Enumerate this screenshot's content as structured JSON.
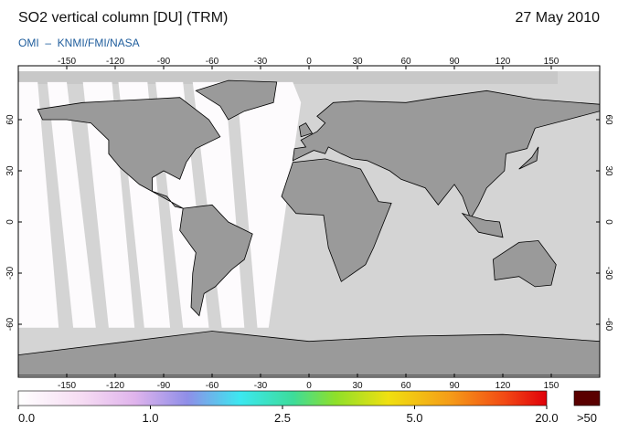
{
  "header": {
    "title": "SO2 vertical column [DU] (TRM)",
    "date": "27 May 2010",
    "source": "OMI  –  KNMI/FMI/NASA"
  },
  "map": {
    "xlim": [
      -180,
      180
    ],
    "ylim": [
      -90,
      90
    ],
    "top_lon_ticks": [
      -150,
      -120,
      -90,
      -60,
      -30,
      0,
      30,
      60,
      90,
      120,
      150
    ],
    "bottom_lon_ticks": [
      -150,
      -120,
      -90,
      -60,
      -30,
      0,
      30,
      60,
      90,
      120,
      150
    ],
    "lat_ticks": [
      60,
      30,
      0,
      -30,
      -60
    ]
  },
  "colorbar": {
    "ticks": [
      {
        "value": 0,
        "label": "0.0"
      },
      {
        "value": 1,
        "label": "1.0"
      },
      {
        "value": 2.5,
        "label": "2.5"
      },
      {
        "value": 5,
        "label": "5.0"
      },
      {
        "value": 20,
        "label": "20.0"
      }
    ],
    "overflow_label": ">50"
  }
}
